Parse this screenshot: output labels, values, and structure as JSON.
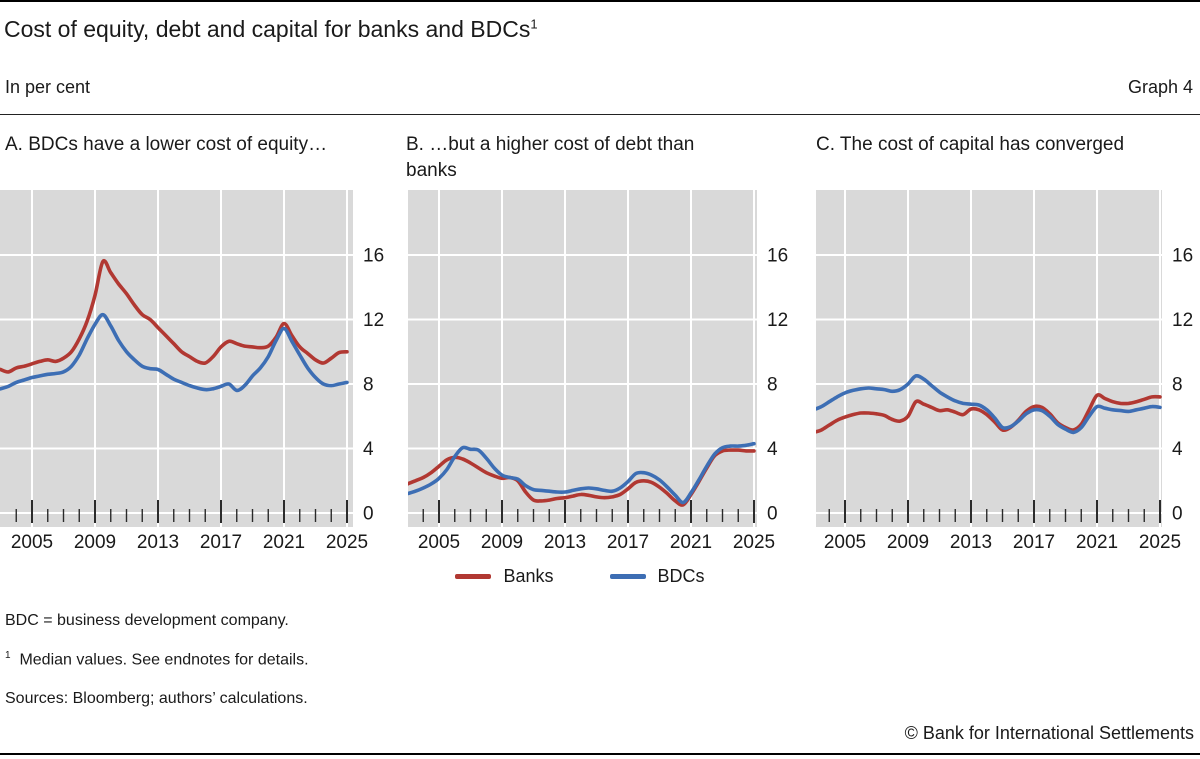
{
  "header": {
    "title": "Cost of equity, debt and capital for banks and BDCs",
    "title_sup": "1",
    "unit_label": "In per cent",
    "graph_label": "Graph 4"
  },
  "colors": {
    "banks": "#b13832",
    "bdcs": "#3d6eb4",
    "plot_bg": "#d9d9d9",
    "grid": "#ffffff",
    "tick": "#2b2b2b",
    "text": "#1a1a1a"
  },
  "legend": [
    {
      "label": "Banks",
      "color_key": "banks"
    },
    {
      "label": "BDCs",
      "color_key": "bdcs"
    }
  ],
  "footnotes": {
    "abbreviation": "BDC = business development company.",
    "note1_sup": "1",
    "note1": "Median values. See endnotes for details.",
    "sources": "Sources: Bloomberg; authors’ calculations."
  },
  "copyright": "© Bank for International Settlements",
  "chart_data": [
    {
      "type": "line",
      "panel_label": "A. BDCs have a lower cost of equity…",
      "ylabel": "per cent",
      "grid": true,
      "legend_position": "below-center",
      "yaxis_side": "right",
      "ylim": [
        0,
        20
      ],
      "yticks": [
        0,
        4,
        8,
        12,
        16
      ],
      "xticks_labeled": [
        2005,
        2009,
        2013,
        2017,
        2021,
        2025
      ],
      "xtick_minor_step": 1,
      "x_range": [
        2003,
        2025
      ],
      "x": [
        2003,
        2003.5,
        2004,
        2004.5,
        2005,
        2005.5,
        2006,
        2006.5,
        2007,
        2007.5,
        2008,
        2008.5,
        2009,
        2009.5,
        2010,
        2010.5,
        2011,
        2011.5,
        2012,
        2012.5,
        2013,
        2013.5,
        2014,
        2014.5,
        2015,
        2015.5,
        2016,
        2016.5,
        2017,
        2017.5,
        2018,
        2018.5,
        2019,
        2019.5,
        2020,
        2020.5,
        2021,
        2021.5,
        2022,
        2022.5,
        2023,
        2023.5,
        2024,
        2024.5,
        2025
      ],
      "series": [
        {
          "name": "Banks",
          "color_key": "banks",
          "values": [
            8.9,
            8.75,
            9.0,
            9.1,
            9.25,
            9.4,
            9.5,
            9.4,
            9.6,
            10.0,
            10.8,
            11.9,
            13.5,
            15.6,
            14.9,
            14.2,
            13.6,
            12.9,
            12.3,
            12.0,
            11.5,
            11.0,
            10.5,
            10.0,
            9.7,
            9.4,
            9.3,
            9.7,
            10.3,
            10.65,
            10.5,
            10.35,
            10.3,
            10.25,
            10.35,
            10.9,
            11.75,
            11.0,
            10.3,
            9.9,
            9.5,
            9.3,
            9.6,
            9.95,
            10.0
          ]
        },
        {
          "name": "BDCs",
          "color_key": "bdcs",
          "values": [
            7.7,
            7.85,
            8.1,
            8.25,
            8.4,
            8.5,
            8.6,
            8.65,
            8.75,
            9.1,
            9.8,
            10.8,
            11.7,
            12.3,
            11.6,
            10.7,
            10.0,
            9.5,
            9.1,
            8.95,
            8.9,
            8.6,
            8.3,
            8.1,
            7.9,
            7.75,
            7.65,
            7.7,
            7.85,
            8.0,
            7.6,
            7.9,
            8.5,
            9.0,
            9.7,
            10.7,
            11.45,
            10.65,
            9.8,
            9.0,
            8.4,
            8.0,
            7.9,
            8.0,
            8.1
          ]
        }
      ]
    },
    {
      "type": "line",
      "panel_label": "B. …but a higher cost of debt than banks",
      "ylabel": "per cent",
      "grid": true,
      "legend_position": "below-center",
      "yaxis_side": "right",
      "ylim": [
        0,
        20
      ],
      "yticks": [
        0,
        4,
        8,
        12,
        16
      ],
      "xticks_labeled": [
        2005,
        2009,
        2013,
        2017,
        2021,
        2025
      ],
      "xtick_minor_step": 1,
      "x_range": [
        2003,
        2025
      ],
      "x": [
        2003,
        2003.5,
        2004,
        2004.5,
        2005,
        2005.5,
        2006,
        2006.5,
        2007,
        2007.5,
        2008,
        2008.5,
        2009,
        2009.5,
        2010,
        2010.5,
        2011,
        2011.5,
        2012,
        2012.5,
        2013,
        2013.5,
        2014,
        2014.5,
        2015,
        2015.5,
        2016,
        2016.5,
        2017,
        2017.5,
        2018,
        2018.5,
        2019,
        2019.5,
        2020,
        2020.5,
        2021,
        2021.5,
        2022,
        2022.5,
        2023,
        2023.5,
        2024,
        2024.5,
        2025
      ],
      "series": [
        {
          "name": "Banks",
          "color_key": "banks",
          "values": [
            1.8,
            2.0,
            2.2,
            2.5,
            2.9,
            3.3,
            3.45,
            3.35,
            3.1,
            2.8,
            2.5,
            2.3,
            2.15,
            2.2,
            2.0,
            1.3,
            0.8,
            0.75,
            0.8,
            0.9,
            0.95,
            1.05,
            1.15,
            1.1,
            1.0,
            0.95,
            1.0,
            1.15,
            1.5,
            1.9,
            2.0,
            1.9,
            1.6,
            1.2,
            0.75,
            0.5,
            1.15,
            1.95,
            2.8,
            3.55,
            3.85,
            3.9,
            3.9,
            3.85,
            3.85
          ]
        },
        {
          "name": "BDCs",
          "color_key": "bdcs",
          "values": [
            1.2,
            1.35,
            1.55,
            1.8,
            2.15,
            2.7,
            3.5,
            4.05,
            3.95,
            3.9,
            3.4,
            2.8,
            2.35,
            2.2,
            2.1,
            1.7,
            1.45,
            1.4,
            1.35,
            1.3,
            1.3,
            1.4,
            1.5,
            1.55,
            1.5,
            1.4,
            1.35,
            1.55,
            1.95,
            2.45,
            2.5,
            2.35,
            2.05,
            1.6,
            1.1,
            0.65,
            1.25,
            2.05,
            2.9,
            3.65,
            4.05,
            4.15,
            4.15,
            4.2,
            4.3
          ]
        }
      ]
    },
    {
      "type": "line",
      "panel_label": "C. The cost of capital has converged",
      "ylabel": "per cent",
      "grid": true,
      "legend_position": "below-center",
      "yaxis_side": "right",
      "ylim": [
        0,
        20
      ],
      "yticks": [
        0,
        4,
        8,
        12,
        16
      ],
      "xticks_labeled": [
        2005,
        2009,
        2013,
        2017,
        2021,
        2025
      ],
      "xtick_minor_step": 1,
      "x_range": [
        2003,
        2025
      ],
      "x": [
        2003,
        2003.5,
        2004,
        2004.5,
        2005,
        2005.5,
        2006,
        2006.5,
        2007,
        2007.5,
        2008,
        2008.5,
        2009,
        2009.5,
        2010,
        2010.5,
        2011,
        2011.5,
        2012,
        2012.5,
        2013,
        2013.5,
        2014,
        2014.5,
        2015,
        2015.5,
        2016,
        2016.5,
        2017,
        2017.5,
        2018,
        2018.5,
        2019,
        2019.5,
        2020,
        2020.5,
        2021,
        2021.5,
        2022,
        2022.5,
        2023,
        2023.5,
        2024,
        2024.5,
        2025
      ],
      "series": [
        {
          "name": "Banks",
          "color_key": "banks",
          "values": [
            5.0,
            5.15,
            5.45,
            5.75,
            5.95,
            6.1,
            6.2,
            6.2,
            6.15,
            6.05,
            5.8,
            5.7,
            6.0,
            6.9,
            6.75,
            6.55,
            6.35,
            6.4,
            6.25,
            6.1,
            6.45,
            6.4,
            6.1,
            5.65,
            5.15,
            5.3,
            5.75,
            6.3,
            6.6,
            6.55,
            6.15,
            5.6,
            5.3,
            5.15,
            5.5,
            6.4,
            7.3,
            7.1,
            6.9,
            6.8,
            6.8,
            6.9,
            7.05,
            7.2,
            7.2
          ]
        },
        {
          "name": "BDCs",
          "color_key": "bdcs",
          "values": [
            6.4,
            6.6,
            6.9,
            7.2,
            7.45,
            7.6,
            7.7,
            7.75,
            7.7,
            7.65,
            7.55,
            7.65,
            8.0,
            8.5,
            8.3,
            7.9,
            7.5,
            7.2,
            6.95,
            6.8,
            6.75,
            6.7,
            6.4,
            5.9,
            5.3,
            5.35,
            5.7,
            6.15,
            6.4,
            6.35,
            6.0,
            5.5,
            5.2,
            5.0,
            5.3,
            6.0,
            6.6,
            6.5,
            6.4,
            6.35,
            6.3,
            6.4,
            6.5,
            6.6,
            6.55
          ]
        }
      ]
    }
  ]
}
